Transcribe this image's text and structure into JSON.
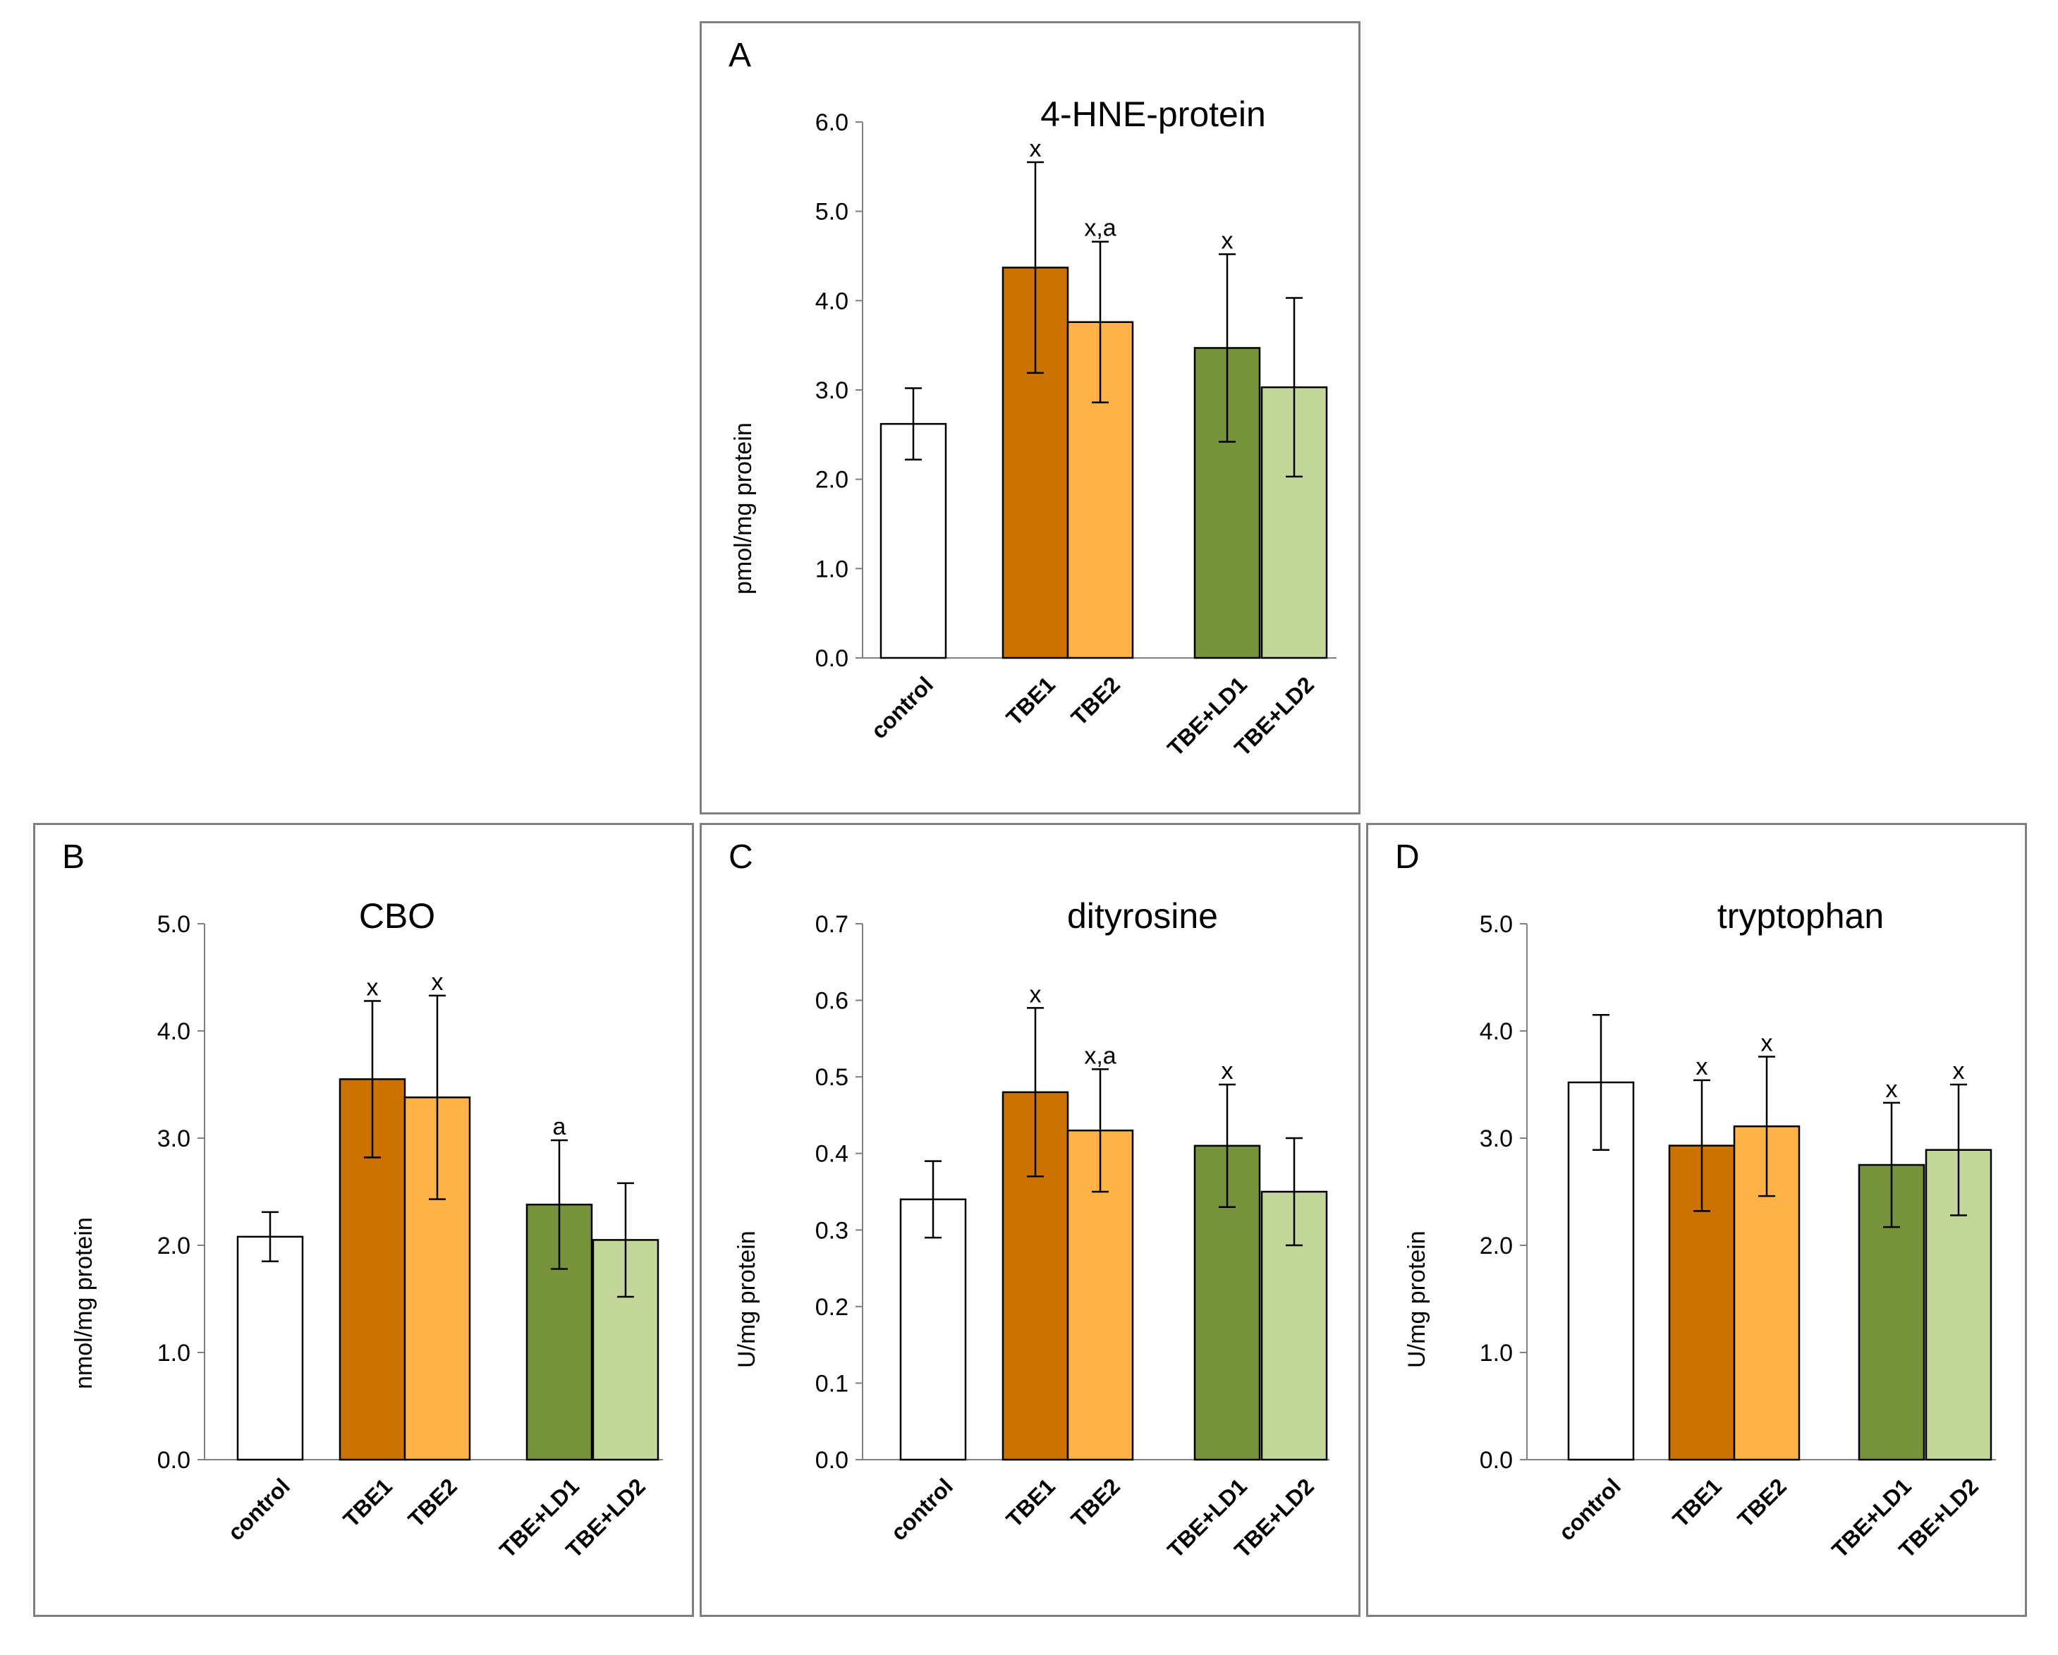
{
  "figure": {
    "group_colors": {
      "control": "#ffffff",
      "TBE1": "#cc7200",
      "TBE2": "#ffb347",
      "TBE+LD1": "#76933c",
      "TBE+LD2": "#c4d79b"
    }
  },
  "chart_data": [
    {
      "panel": "A",
      "type": "bar",
      "title": "4-HNE-protein",
      "xlabel": "",
      "ylabel": "pmol/mg protein",
      "categories": [
        "control",
        "TBE1",
        "TBE2",
        "TBE+LD1",
        "TBE+LD2"
      ],
      "values": [
        2.62,
        4.37,
        3.76,
        3.47,
        3.03
      ],
      "errors": [
        0.4,
        1.18,
        0.9,
        1.05,
        1.0
      ],
      "annotations": [
        "",
        "x",
        "x,a",
        "x",
        ""
      ],
      "ylim": [
        0,
        6.0
      ],
      "yticks": [
        "0.0",
        "1.0",
        "2.0",
        "3.0",
        "4.0",
        "5.0",
        "6.0"
      ]
    },
    {
      "panel": "B",
      "type": "bar",
      "title": "CBO",
      "xlabel": "",
      "ylabel": "nmol/mg protein",
      "categories": [
        "control",
        "TBE1",
        "TBE2",
        "TBE+LD1",
        "TBE+LD2"
      ],
      "values": [
        2.08,
        3.55,
        3.38,
        2.38,
        2.05
      ],
      "errors": [
        0.23,
        0.73,
        0.95,
        0.6,
        0.53
      ],
      "annotations": [
        "",
        "x",
        "x",
        "a",
        ""
      ],
      "ylim": [
        0,
        5.0
      ],
      "yticks": [
        "0.0",
        "1.0",
        "2.0",
        "3.0",
        "4.0",
        "5.0"
      ]
    },
    {
      "panel": "C",
      "type": "bar",
      "title": "dityrosine",
      "xlabel": "",
      "ylabel": "U/mg protein",
      "categories": [
        "control",
        "TBE1",
        "TBE2",
        "TBE+LD1",
        "TBE+LD2"
      ],
      "values": [
        0.34,
        0.48,
        0.43,
        0.41,
        0.35
      ],
      "errors": [
        0.05,
        0.11,
        0.08,
        0.08,
        0.07
      ],
      "annotations": [
        "",
        "x",
        "x,a",
        "x",
        ""
      ],
      "ylim": [
        0,
        0.7
      ],
      "yticks": [
        "0.0",
        "0.1",
        "0.2",
        "0.3",
        "0.4",
        "0.5",
        "0.6",
        "0.7"
      ]
    },
    {
      "panel": "D",
      "type": "bar",
      "title": "tryptophan",
      "xlabel": "",
      "ylabel": "U/mg protein",
      "categories": [
        "control",
        "TBE1",
        "TBE2",
        "TBE+LD1",
        "TBE+LD2"
      ],
      "values": [
        3.52,
        2.93,
        3.11,
        2.75,
        2.89
      ],
      "errors": [
        0.63,
        0.61,
        0.65,
        0.58,
        0.61
      ],
      "annotations": [
        "",
        "x",
        "x",
        "x",
        "x"
      ],
      "ylim": [
        0,
        5.0
      ],
      "yticks": [
        "0.0",
        "1.0",
        "2.0",
        "3.0",
        "4.0",
        "5.0"
      ]
    }
  ]
}
